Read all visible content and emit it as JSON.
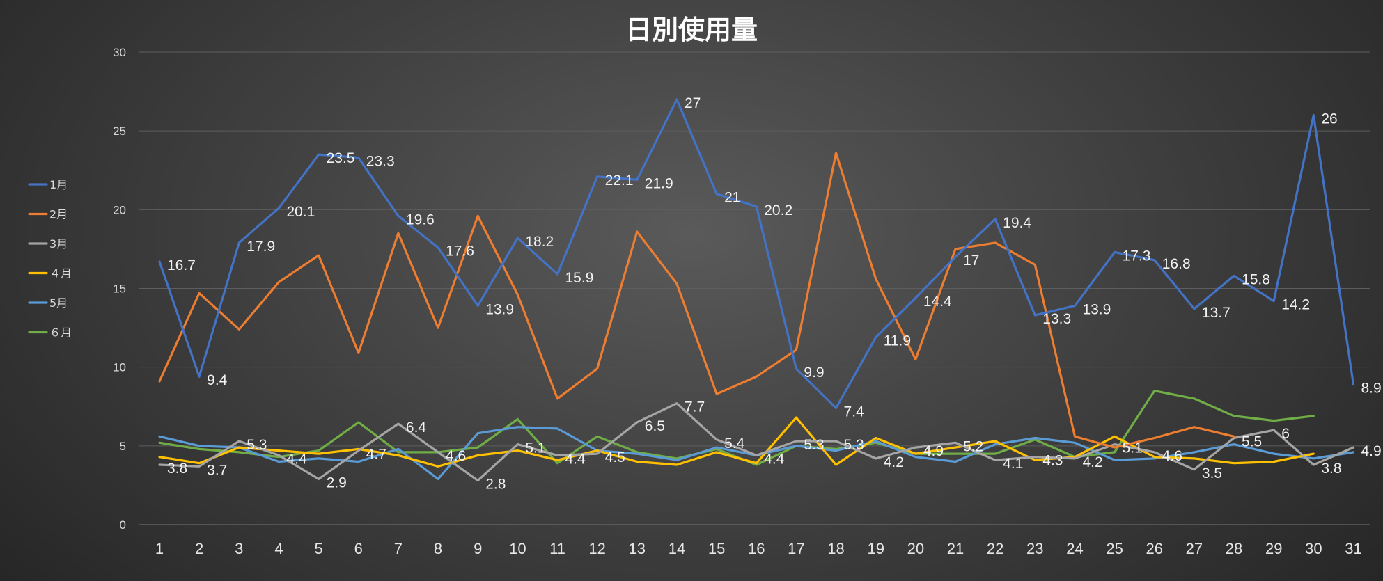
{
  "chart_data": {
    "type": "line",
    "title": "日別使用量",
    "xlabel": "",
    "ylabel": "",
    "ylim": [
      0,
      30
    ],
    "yticks": [
      "0",
      "5",
      "10",
      "15",
      "20",
      "25",
      "30"
    ],
    "x": [
      "1",
      "2",
      "3",
      "4",
      "5",
      "6",
      "7",
      "8",
      "9",
      "10",
      "11",
      "12",
      "13",
      "14",
      "15",
      "16",
      "17",
      "18",
      "19",
      "20",
      "21",
      "22",
      "23",
      "24",
      "25",
      "26",
      "27",
      "28",
      "29",
      "30",
      "31"
    ],
    "legend_position": "left",
    "grid": true,
    "series": [
      {
        "name": "1月",
        "color": "#4472c4",
        "values": [
          16.7,
          9.4,
          17.9,
          20.1,
          23.5,
          23.3,
          19.6,
          17.6,
          13.9,
          18.2,
          15.9,
          22.1,
          21.9,
          27,
          21,
          20.2,
          9.9,
          7.4,
          11.9,
          14.4,
          17,
          19.4,
          13.3,
          13.9,
          17.3,
          16.8,
          13.7,
          15.8,
          14.2,
          26,
          8.9
        ],
        "labels": [
          "16.7",
          "9.4",
          "17.9",
          "20.1",
          "23.5",
          "23.3",
          "19.6",
          "17.6",
          "13.9",
          "18.2",
          "15.9",
          "22.1",
          "21.9",
          "27",
          "21",
          "20.2",
          "9.9",
          "7.4",
          "11.9",
          "14.4",
          "17",
          "19.4",
          "13.3",
          "13.9",
          "17.3",
          "16.8",
          "13.7",
          "15.8",
          "14.2",
          "26",
          "8.9"
        ]
      },
      {
        "name": "2月",
        "color": "#ed7d31",
        "values": [
          9.1,
          14.7,
          12.4,
          15.4,
          17.1,
          10.9,
          18.5,
          12.5,
          19.6,
          14.6,
          8,
          9.9,
          18.6,
          15.3,
          8.3,
          9.4,
          11.1,
          23.6,
          15.6,
          10.5,
          17.5,
          17.9,
          16.5,
          5.6,
          4.9,
          5.5,
          6.2,
          5.6,
          null,
          null,
          null
        ],
        "labels": []
      },
      {
        "name": "3月",
        "color": "#a5a5a5",
        "values": [
          3.8,
          3.7,
          5.3,
          4.4,
          2.9,
          4.7,
          6.4,
          4.6,
          2.8,
          5.1,
          4.4,
          4.5,
          6.5,
          7.7,
          5.4,
          4.4,
          5.3,
          5.3,
          4.2,
          4.9,
          5.2,
          4.1,
          4.3,
          4.2,
          5.1,
          4.6,
          3.5,
          5.5,
          6,
          3.8,
          4.9
        ],
        "labels": [
          "3.8",
          "3.7",
          "5.3",
          "4.4",
          "2.9",
          "4.7",
          "6.4",
          "4.6",
          "2.8",
          "5.1",
          "4.4",
          "4.5",
          "6.5",
          "7.7",
          "5.4",
          "4.4",
          "5.3",
          "5.3",
          "4.2",
          "4.9",
          "5.2",
          "4.1",
          "4.3",
          "4.2",
          "5.1",
          "4.6",
          "3.5",
          "5.5",
          "6",
          "3.8",
          "4.9"
        ]
      },
      {
        "name": "４月",
        "color": "#ffc000",
        "values": [
          4.3,
          3.9,
          4.9,
          4.7,
          4.5,
          4.8,
          4.4,
          3.7,
          4.4,
          4.7,
          4.1,
          4.7,
          4,
          3.8,
          4.6,
          3.9,
          6.8,
          3.8,
          5.5,
          4.5,
          4.9,
          5.3,
          4.1,
          4.3,
          5.6,
          4.3,
          4.2,
          3.9,
          4,
          4.5,
          null
        ],
        "labels": []
      },
      {
        "name": "5月",
        "color": "#5b9bd5",
        "values": [
          5.6,
          5,
          4.9,
          4,
          4.2,
          4,
          4.8,
          2.9,
          5.8,
          6.2,
          6.1,
          4.7,
          4.5,
          4.1,
          4.9,
          4.4,
          5,
          4.7,
          5.3,
          4.3,
          4,
          5.1,
          5.5,
          5.2,
          4.1,
          4.2,
          4.6,
          5.1,
          4.5,
          4.2,
          4.6
        ],
        "labels": []
      },
      {
        "name": "６月",
        "color": "#70ad47",
        "values": [
          5.2,
          4.8,
          4.6,
          4.3,
          4.7,
          6.5,
          4.6,
          4.6,
          4.9,
          6.7,
          3.9,
          5.6,
          4.6,
          4.2,
          4.8,
          3.8,
          5,
          4.8,
          5.2,
          4.5,
          4.5,
          4.5,
          5.4,
          4.3,
          4.6,
          8.5,
          8,
          6.9,
          6.6,
          6.9,
          null
        ],
        "labels": []
      }
    ]
  }
}
